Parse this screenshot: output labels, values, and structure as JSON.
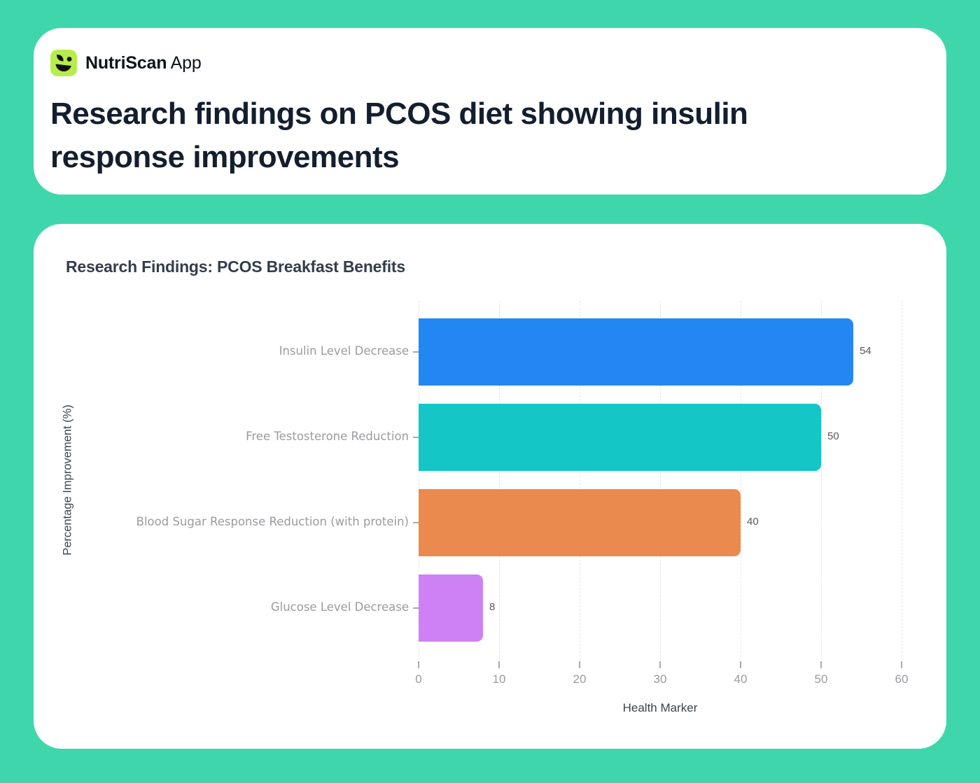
{
  "app": {
    "name_bold": "NutriScan",
    "name_suffix": "App",
    "logo_bg_color": "#b7ec4c",
    "logo_glyph_color": "#121212"
  },
  "header": {
    "title": "Research findings on PCOS diet showing insulin response improvements"
  },
  "colors": {
    "page_background": "#40d6ac",
    "card_background": "#ffffff",
    "title_text": "#131e2e",
    "chart_title_text": "#333d4c",
    "category_label_text": "#9b9ba0",
    "value_label_text": "#55595e",
    "axis_title_text": "#3c434b",
    "gridline": "#e4e4e8"
  },
  "chart_data": {
    "type": "bar",
    "orientation": "horizontal",
    "title": "Research Findings: PCOS Breakfast Benefits",
    "categories": [
      "Insulin Level Decrease",
      "Free Testosterone Reduction",
      "Blood Sugar Response Reduction (with protein)",
      "Glucose Level Decrease"
    ],
    "values": [
      54,
      50,
      40,
      8
    ],
    "bar_colors": [
      "#2287f2",
      "#14c6c6",
      "#eb8a4f",
      "#cd81f4"
    ],
    "value_labels": [
      "54",
      "50",
      "40",
      "8"
    ],
    "xlabel": "Health Marker",
    "ylabel": "Percentage Improvement (%)",
    "xlim": [
      0,
      60
    ],
    "xticks": [
      0,
      10,
      20,
      30,
      40,
      50,
      60
    ],
    "grid": "dashed-vertical",
    "legend": "none"
  }
}
